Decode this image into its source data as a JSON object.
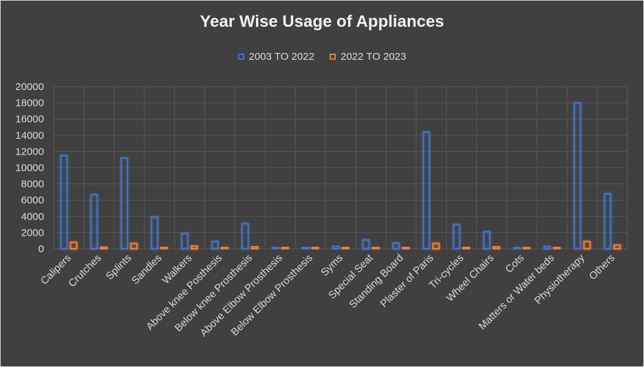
{
  "chart_data": {
    "type": "bar",
    "title": "Year Wise Usage of Appliances",
    "xlabel": "",
    "ylabel": "",
    "ylim": [
      0,
      20000
    ],
    "yticks": [
      0,
      2000,
      4000,
      6000,
      8000,
      10000,
      12000,
      14000,
      16000,
      18000,
      20000
    ],
    "grid": true,
    "legend_position": "top",
    "categories": [
      "Calipers",
      "Crutches",
      "Splints",
      "Sandles",
      "Walkers",
      "Above knee Posthesis",
      "Below knee Prosthesis",
      "Above Elbow Prosthesis",
      "Below Elbow Prosthesis",
      "Syms",
      "Special Seat",
      "Standing Board",
      "Plaster of Paris",
      "Tri-cycles",
      "Wheel Chairs",
      "Cots",
      "Matters or Water beds",
      "Physiotherapy",
      "Others"
    ],
    "series": [
      {
        "name": "2003 TO 2022",
        "color": "#4472c4",
        "values": [
          11500,
          6700,
          11200,
          3900,
          1900,
          900,
          3100,
          100,
          150,
          300,
          1100,
          700,
          14400,
          3000,
          2100,
          150,
          300,
          18000,
          6800
        ]
      },
      {
        "name": "2022 TO 2023",
        "color": "#ed7d31",
        "values": [
          800,
          200,
          650,
          100,
          350,
          150,
          250,
          100,
          100,
          100,
          150,
          150,
          650,
          150,
          250,
          0,
          150,
          900,
          450
        ]
      }
    ]
  }
}
